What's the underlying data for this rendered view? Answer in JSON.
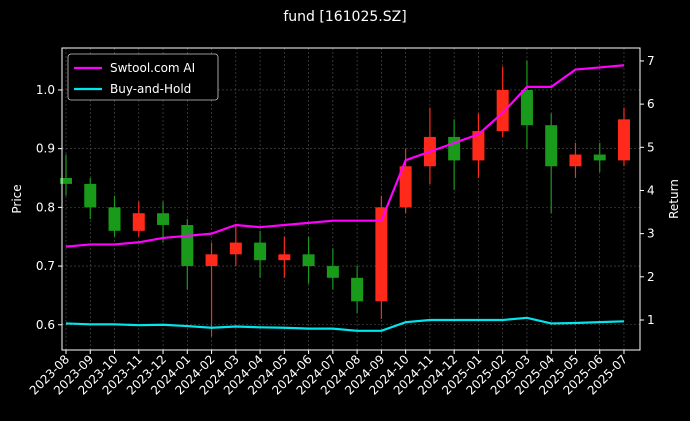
{
  "chart_data": {
    "type": "candlestick",
    "title": "fund [161025.SZ]",
    "ylabel": "Price",
    "y2label": "Return",
    "categories": [
      "2023-08",
      "2023-09",
      "2023-10",
      "2023-11",
      "2023-12",
      "2024-01",
      "2024-02",
      "2024-03",
      "2024-04",
      "2024-05",
      "2024-06",
      "2024-07",
      "2024-08",
      "2024-09",
      "2024-10",
      "2024-11",
      "2024-12",
      "2025-01",
      "2025-02",
      "2025-03",
      "2025-04",
      "2025-05",
      "2025-06",
      "2025-07"
    ],
    "open": [
      0.85,
      0.84,
      0.8,
      0.76,
      0.79,
      0.77,
      0.7,
      0.72,
      0.74,
      0.71,
      0.72,
      0.7,
      0.68,
      0.64,
      0.8,
      0.87,
      0.92,
      0.88,
      0.93,
      1.0,
      0.94,
      0.87,
      0.89,
      0.88
    ],
    "high": [
      0.89,
      0.85,
      0.82,
      0.81,
      0.81,
      0.78,
      0.74,
      0.77,
      0.76,
      0.75,
      0.75,
      0.73,
      0.7,
      0.82,
      0.9,
      0.97,
      0.95,
      0.96,
      1.04,
      1.05,
      0.96,
      0.91,
      0.91,
      0.97
    ],
    "low": [
      0.82,
      0.78,
      0.75,
      0.75,
      0.74,
      0.66,
      0.58,
      0.7,
      0.68,
      0.68,
      0.67,
      0.66,
      0.62,
      0.61,
      0.79,
      0.84,
      0.83,
      0.85,
      0.92,
      0.9,
      0.79,
      0.85,
      0.86,
      0.87
    ],
    "close": [
      0.84,
      0.8,
      0.76,
      0.79,
      0.77,
      0.7,
      0.72,
      0.74,
      0.71,
      0.72,
      0.7,
      0.68,
      0.64,
      0.8,
      0.87,
      0.92,
      0.88,
      0.93,
      1.0,
      0.94,
      0.87,
      0.89,
      0.88,
      0.95
    ],
    "up_color": "#ff2a1a",
    "down_color": "#1a9a1a",
    "series": [
      {
        "name": "Swtool.com AI",
        "color": "#ff00ff",
        "axis": "y2",
        "values": [
          2.7,
          2.75,
          2.75,
          2.8,
          2.9,
          2.95,
          3.0,
          3.2,
          3.15,
          3.2,
          3.25,
          3.3,
          3.3,
          3.3,
          4.7,
          4.9,
          5.1,
          5.3,
          5.8,
          6.4,
          6.4,
          6.8,
          6.85,
          6.9
        ]
      },
      {
        "name": "Buy-and-Hold",
        "color": "#00e5ee",
        "axis": "y2",
        "values": [
          0.92,
          0.9,
          0.9,
          0.88,
          0.89,
          0.86,
          0.82,
          0.85,
          0.83,
          0.82,
          0.8,
          0.8,
          0.75,
          0.75,
          0.95,
          1.0,
          1.0,
          1.0,
          1.0,
          1.05,
          0.92,
          0.93,
          0.95,
          0.97
        ]
      }
    ],
    "ylim": [
      0.557,
      1.0715
    ],
    "yticks": [
      0.6,
      0.7,
      0.8,
      0.9,
      {
        "value": 1.0,
        "label": "1.0"
      }
    ],
    "y2lim": [
      0.305,
      7.3
    ],
    "y2ticks": [
      1,
      2,
      3,
      4,
      5,
      6,
      7
    ],
    "grid": true,
    "legend": "upper left"
  }
}
